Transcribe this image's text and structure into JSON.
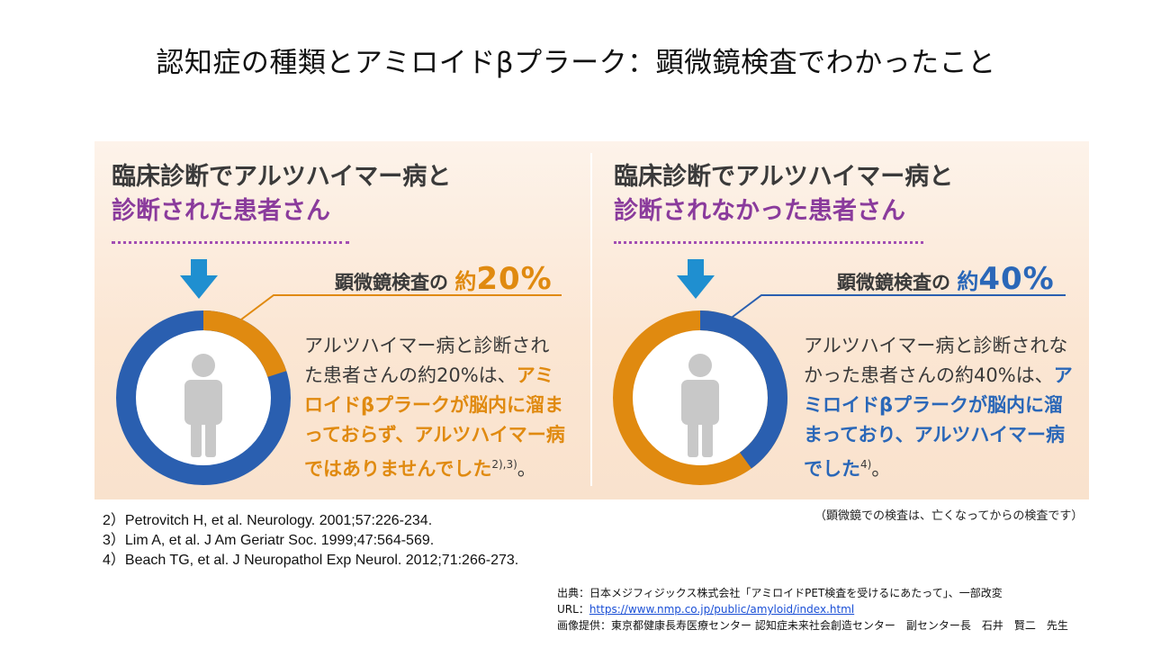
{
  "title": "認知症の種類とアミロイドβプラーク：顕微鏡検査でわかったこと",
  "left": {
    "heading_line1": "臨床診断でアルツハイマー病と",
    "heading_line2": "診断された患者さん",
    "pct_prefix": "顕微鏡検査の",
    "pct_approx": "約",
    "pct_value": "20%",
    "fraction": 0.2,
    "accent_color": "#e08a10",
    "ring_color": "#2a5fb0",
    "desc_normal": "アルツハイマー病と診断された患者さんの約20%は、",
    "desc_highlight": "アミロイドβプラークが脳内に溜まっておらず、アルツハイマー病ではありませんでした",
    "desc_ref": "2),3)",
    "desc_end": "。"
  },
  "right": {
    "heading_line1": "臨床診断でアルツハイマー病と",
    "heading_line2": "診断されなかった患者さん",
    "pct_prefix": "顕微鏡検査の",
    "pct_approx": "約",
    "pct_value": "40%",
    "fraction": 0.4,
    "accent_color": "#2a5fb0",
    "ring_color": "#e08a10",
    "desc_normal": "アルツハイマー病と診断されなかった患者さんの約40%は、",
    "desc_highlight": "アミロイドβプラークが脳内に溜まっており、アルツハイマー病でした",
    "desc_ref": "4)",
    "desc_end": "。"
  },
  "note": "（顕微鏡での検査は、亡くなってからの検査です）",
  "references": [
    "2）Petrovitch H, et al. Neurology. 2001;57:226-234.",
    "3）Lim A, et al. J Am Geriatr Soc. 1999;47:564-569.",
    "4）Beach TG, et al. J Neuropathol Exp Neurol. 2012;71:266-273."
  ],
  "source": {
    "line1": "出典：日本メジフィジックス株式会社「アミロイドPET検査を受けるにあたって」、一部改変",
    "url_label": "URL：",
    "url": "https://www.nmp.co.jp/public/amyloid/index.html",
    "line3": "画像提供：東京都健康長寿医療センター 認知症未来社会創造センター　副センター長　石井　賢二　先生"
  },
  "icons": {
    "arrow": "down-arrow-icon",
    "person": "person-icon"
  }
}
